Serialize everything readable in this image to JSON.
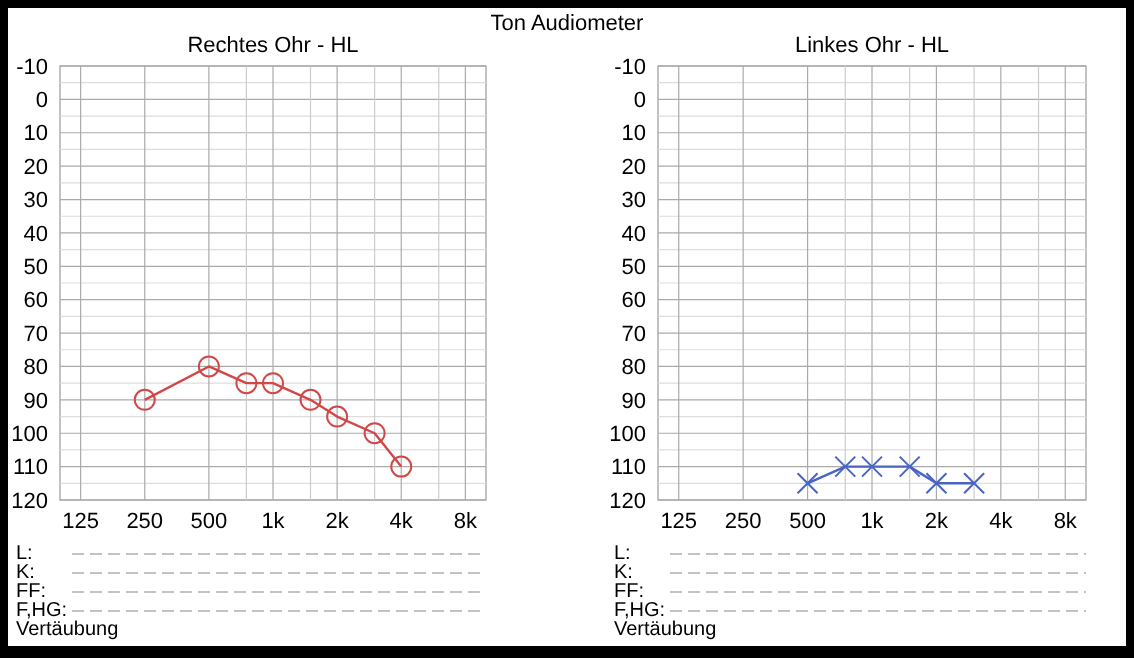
{
  "chart_data": [
    {
      "type": "line",
      "title": "Ton Audiometer",
      "subtitle": "Rechtes Ohr - HL",
      "log": "x",
      "grid": true,
      "xlim": [
        100,
        10000
      ],
      "ylim": [
        120,
        -10
      ],
      "xticks": [
        {
          "value": 125,
          "label": "125"
        },
        {
          "value": 250,
          "label": "250"
        },
        {
          "value": 500,
          "label": "500"
        },
        {
          "value": 750,
          "label": null
        },
        {
          "value": 1000,
          "label": "1k"
        },
        {
          "value": 1500,
          "label": null
        },
        {
          "value": 2000,
          "label": "2k"
        },
        {
          "value": 3000,
          "label": null
        },
        {
          "value": 4000,
          "label": "4k"
        },
        {
          "value": 6000,
          "label": null
        },
        {
          "value": 8000,
          "label": "8k"
        }
      ],
      "yticks": [
        -10,
        {
          "value": -5,
          "label": null
        },
        0,
        {
          "value": 5,
          "label": null
        },
        10,
        {
          "value": 15,
          "label": null
        },
        20,
        {
          "value": 25,
          "label": null
        },
        30,
        {
          "value": 35,
          "label": null
        },
        40,
        {
          "value": 45,
          "label": null
        },
        50,
        {
          "value": 55,
          "label": null
        },
        60,
        {
          "value": 65,
          "label": null
        },
        70,
        {
          "value": 75,
          "label": null
        },
        80,
        {
          "value": 85,
          "label": null
        },
        90,
        {
          "value": 95,
          "label": null
        },
        100,
        {
          "value": 105,
          "label": null
        },
        110,
        {
          "value": 115,
          "label": null
        },
        120
      ],
      "series": [
        {
          "color": "#d04848",
          "marker": "circle",
          "x": [
            250,
            500,
            750,
            1000,
            1500,
            2000,
            3000,
            4000
          ],
          "values": [
            90,
            80,
            85,
            85,
            90,
            95,
            100,
            110
          ]
        }
      ],
      "annotations": [
        "L:",
        "K:",
        "FF:",
        "F,HG:",
        "Vertäubung"
      ]
    },
    {
      "type": "line",
      "subtitle": "Linkes Ohr - HL",
      "log": "x",
      "grid": true,
      "xlim": [
        100,
        10000
      ],
      "ylim": [
        120,
        -10
      ],
      "xticks": [
        {
          "value": 125,
          "label": "125"
        },
        {
          "value": 250,
          "label": "250"
        },
        {
          "value": 500,
          "label": "500"
        },
        {
          "value": 750,
          "label": null
        },
        {
          "value": 1000,
          "label": "1k"
        },
        {
          "value": 1500,
          "label": null
        },
        {
          "value": 2000,
          "label": "2k"
        },
        {
          "value": 3000,
          "label": null
        },
        {
          "value": 4000,
          "label": "4k"
        },
        {
          "value": 6000,
          "label": null
        },
        {
          "value": 8000,
          "label": "8k"
        }
      ],
      "yticks": [
        -10,
        {
          "value": -5,
          "label": null
        },
        0,
        {
          "value": 5,
          "label": null
        },
        10,
        {
          "value": 15,
          "label": null
        },
        20,
        {
          "value": 25,
          "label": null
        },
        30,
        {
          "value": 35,
          "label": null
        },
        40,
        {
          "value": 45,
          "label": null
        },
        50,
        {
          "value": 55,
          "label": null
        },
        60,
        {
          "value": 65,
          "label": null
        },
        70,
        {
          "value": 75,
          "label": null
        },
        80,
        {
          "value": 85,
          "label": null
        },
        90,
        {
          "value": 95,
          "label": null
        },
        100,
        {
          "value": 105,
          "label": null
        },
        110,
        {
          "value": 115,
          "label": null
        },
        120
      ],
      "series": [
        {
          "color": "#4a64c4",
          "marker": "cross",
          "x": [
            500,
            750,
            1000,
            1500,
            2000,
            3000
          ],
          "values": [
            115,
            110,
            110,
            110,
            115,
            115
          ]
        }
      ],
      "annotations": [
        "L:",
        "K:",
        "FF:",
        "F,HG:",
        "Vertäubung"
      ]
    }
  ]
}
